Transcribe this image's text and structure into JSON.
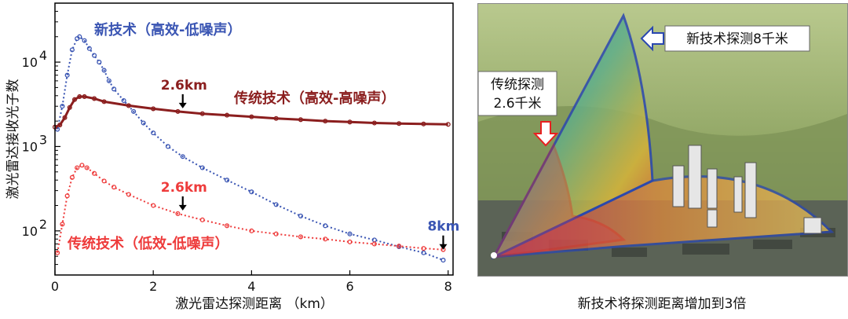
{
  "chart_data": {
    "type": "scatter",
    "xlabel": "激光雷达探测距离 （km）",
    "ylabel": "激光雷达接收光子数",
    "xlim": [
      0,
      8.1
    ],
    "ylim": [
      30,
      50000
    ],
    "y_scale": "log",
    "x_ticks": [
      0,
      2,
      4,
      6,
      8
    ],
    "x_tick_labels": [
      "0",
      "2",
      "4",
      "6",
      "8"
    ],
    "y_ticks": [
      100,
      1000,
      10000
    ],
    "y_tick_labels": [
      {
        "base": "10",
        "exp": "2"
      },
      {
        "base": "10",
        "exp": "3"
      },
      {
        "base": "10",
        "exp": "4"
      }
    ],
    "grid": false,
    "series": [
      {
        "name": "新技术（高效-低噪声）",
        "color": "#3a55b3",
        "x": [
          0.05,
          0.15,
          0.25,
          0.35,
          0.45,
          0.5,
          0.6,
          0.7,
          0.8,
          0.9,
          1.0,
          1.1,
          1.2,
          1.4,
          1.6,
          1.8,
          2.0,
          2.3,
          2.6,
          3.0,
          3.5,
          4.0,
          4.5,
          5.0,
          5.5,
          6.0,
          6.5,
          7.0,
          7.5,
          7.9
        ],
        "y": [
          1600,
          3000,
          7000,
          14000,
          19000,
          20000,
          18000,
          14500,
          12000,
          10000,
          8000,
          6000,
          4800,
          3500,
          2600,
          1900,
          1450,
          1000,
          760,
          560,
          400,
          290,
          205,
          150,
          115,
          92,
          78,
          65,
          55,
          45
        ]
      },
      {
        "name": "传统技术（高效-高噪声）",
        "color": "#8b1e1e",
        "x": [
          0.0,
          0.1,
          0.2,
          0.3,
          0.4,
          0.5,
          0.6,
          0.8,
          1.0,
          1.5,
          2.0,
          2.5,
          3.0,
          3.5,
          4.0,
          4.5,
          5.0,
          5.5,
          6.0,
          6.5,
          7.0,
          7.5,
          8.0
        ],
        "y": [
          1700,
          1800,
          2200,
          2900,
          3600,
          3900,
          3900,
          3700,
          3400,
          3050,
          2800,
          2600,
          2450,
          2350,
          2250,
          2150,
          2080,
          2000,
          1950,
          1900,
          1870,
          1850,
          1830
        ]
      },
      {
        "name": "传统技术（低效-低噪声）",
        "color": "#ee3b3b",
        "x": [
          0.05,
          0.15,
          0.25,
          0.35,
          0.45,
          0.55,
          0.65,
          0.8,
          1.0,
          1.2,
          1.5,
          2.0,
          2.5,
          3.0,
          3.5,
          4.0,
          4.5,
          5.0,
          5.5,
          6.0,
          6.5,
          7.0,
          7.5,
          7.9
        ],
        "y": [
          55,
          120,
          260,
          430,
          560,
          600,
          560,
          480,
          390,
          330,
          270,
          200,
          160,
          135,
          115,
          100,
          92,
          85,
          80,
          74,
          70,
          66,
          62,
          60
        ]
      }
    ],
    "annotations": [
      {
        "text": "2.6km",
        "x": 2.6,
        "y": 2600,
        "color": "#8b1e1e"
      },
      {
        "text": "2.6km",
        "x": 2.6,
        "y": 160,
        "color": "#ee3b3b"
      },
      {
        "text": "8km",
        "x": 7.9,
        "y": 55,
        "color": "#3a55b3"
      }
    ]
  },
  "right_panel": {
    "new_callout": "新技术探测8千米",
    "old_callout_line1": "传统探测",
    "old_callout_line2": "2.6千米",
    "caption": "新技术将探测距离增加到3倍"
  }
}
